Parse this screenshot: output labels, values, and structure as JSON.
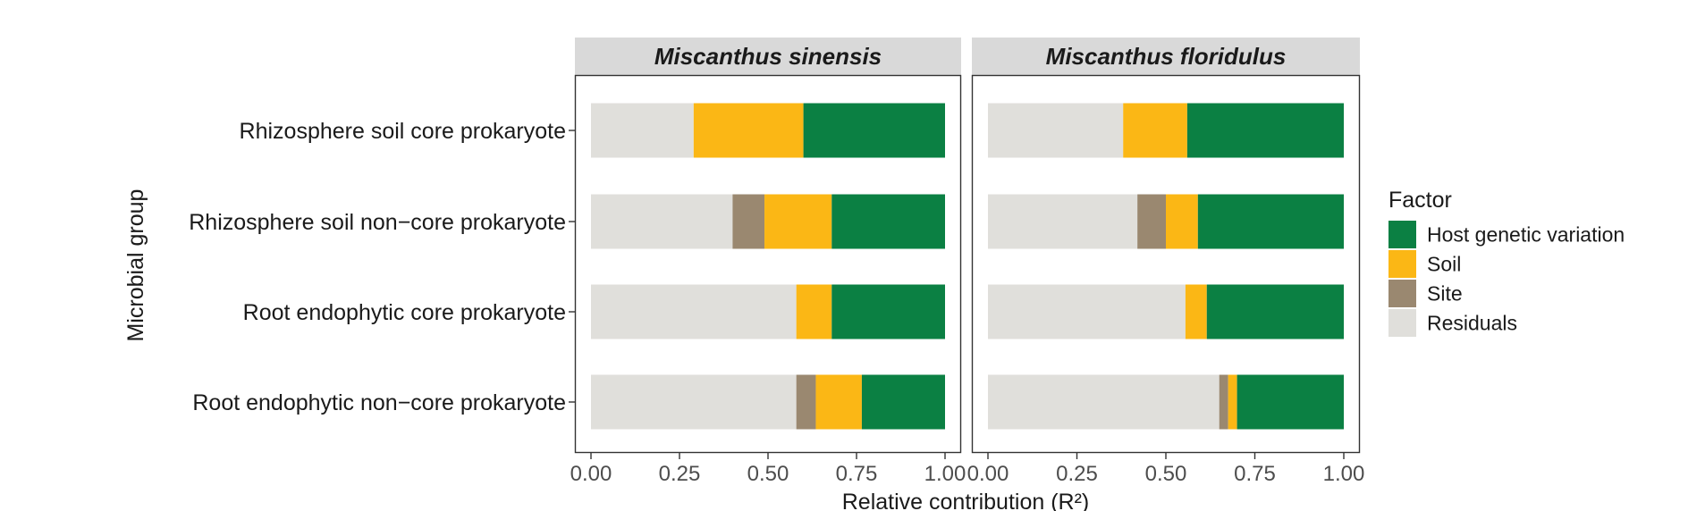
{
  "chart_data": {
    "type": "bar",
    "orientation": "horizontal",
    "stacked": true,
    "xlabel": "Relative contribution (R²)",
    "ylabel": "Microbial group",
    "xlim": [
      0,
      1
    ],
    "xticks": [
      0,
      0.25,
      0.5,
      0.75,
      1
    ],
    "xtick_labels": [
      "0.00",
      "0.25",
      "0.50",
      "0.75",
      "1.00"
    ],
    "categories": [
      "Rhizosphere soil core prokaryote",
      "Rhizosphere soil non−core prokaryote",
      "Root endophytic core prokaryote",
      "Root endophytic non−core prokaryote"
    ],
    "legend": {
      "title": "Factor",
      "position": "right",
      "entries": [
        {
          "name": "Host genetic variation",
          "color": "#0b8043"
        },
        {
          "name": "Soil",
          "color": "#fbb715"
        },
        {
          "name": "Site",
          "color": "#9a8870"
        },
        {
          "name": "Residuals",
          "color": "#e0dfdb"
        }
      ]
    },
    "stack_order": [
      "Residuals",
      "Site",
      "Soil",
      "Host genetic variation"
    ],
    "panels": [
      {
        "title": "Miscanthus sinensis",
        "series": [
          {
            "name": "Residuals",
            "color": "#e0dfdb",
            "values": [
              0.29,
              0.4,
              0.58,
              0.58
            ]
          },
          {
            "name": "Site",
            "color": "#9a8870",
            "values": [
              0.0,
              0.09,
              0.0,
              0.055
            ]
          },
          {
            "name": "Soil",
            "color": "#fbb715",
            "values": [
              0.31,
              0.19,
              0.1,
              0.13
            ]
          },
          {
            "name": "Host genetic variation",
            "color": "#0b8043",
            "values": [
              0.4,
              0.32,
              0.32,
              0.235
            ]
          }
        ]
      },
      {
        "title": "Miscanthus floridulus",
        "series": [
          {
            "name": "Residuals",
            "color": "#e0dfdb",
            "values": [
              0.38,
              0.42,
              0.555,
              0.65
            ]
          },
          {
            "name": "Site",
            "color": "#9a8870",
            "values": [
              0.0,
              0.08,
              0.0,
              0.025
            ]
          },
          {
            "name": "Soil",
            "color": "#fbb715",
            "values": [
              0.18,
              0.09,
              0.06,
              0.025
            ]
          },
          {
            "name": "Host genetic variation",
            "color": "#0b8043",
            "values": [
              0.44,
              0.41,
              0.385,
              0.3
            ]
          }
        ]
      }
    ]
  }
}
